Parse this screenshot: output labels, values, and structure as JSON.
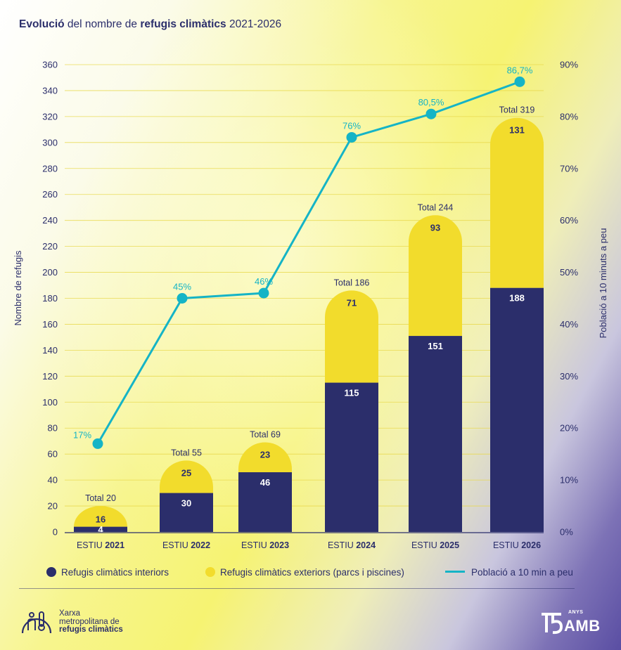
{
  "title": {
    "bold1": "Evolució",
    "mid": " del nombre de ",
    "bold2": "refugis climàtics",
    "end": " 2021-2026"
  },
  "chart_data": {
    "type": "bar",
    "stacked": true,
    "categories": [
      {
        "prefix": "ESTIU ",
        "year": "2021"
      },
      {
        "prefix": "ESTIU ",
        "year": "2022"
      },
      {
        "prefix": "ESTIU ",
        "year": "2023"
      },
      {
        "prefix": "ESTIU ",
        "year": "2024"
      },
      {
        "prefix": "ESTIU ",
        "year": "2025"
      },
      {
        "prefix": "ESTIU ",
        "year": "2026"
      }
    ],
    "series": [
      {
        "name": "Refugis climàtics interiors",
        "values": [
          4,
          30,
          46,
          115,
          151,
          188
        ],
        "color": "#2b2e6b"
      },
      {
        "name": "Refugis climàtics exteriors (parcs i piscines)",
        "values": [
          16,
          25,
          23,
          71,
          93,
          131
        ],
        "color": "#f2dc2c"
      }
    ],
    "totals": [
      20,
      55,
      69,
      186,
      244,
      319
    ],
    "total_labels": [
      "Total 20",
      "Total 55",
      "Total 69",
      "Total 186",
      "Total 244",
      "Total 319"
    ],
    "line_series": {
      "name": "Població a 10 min a peu",
      "values": [
        17,
        45,
        46,
        76,
        80.5,
        86.7
      ],
      "labels": [
        "17%",
        "45%",
        "46%",
        "76%",
        "80,5%",
        "86,7%"
      ],
      "color": "#15b4c6",
      "axis": "right"
    },
    "ylabel": "Nombre de refugis",
    "ylim": [
      0,
      360
    ],
    "yticks": [
      "0",
      "20",
      "40",
      "60",
      "80",
      "100",
      "120",
      "140",
      "160",
      "180",
      "200",
      "220",
      "240",
      "260",
      "280",
      "300",
      "320",
      "340",
      "360"
    ],
    "y2label": "Població a 10 minuts a peu",
    "y2lim": [
      0,
      90
    ],
    "y2ticks": [
      "0%",
      "10%",
      "20%",
      "30%",
      "40%",
      "50%",
      "60%",
      "70%",
      "80%",
      "90%"
    ],
    "grid": true,
    "legend_position": "bottom"
  },
  "brand": {
    "line1": "Xarxa",
    "line2": "metropolitana de",
    "line3": "refugis climàtics"
  },
  "amb_logo": {
    "word": "AMB",
    "anys": "ANYS"
  },
  "colors": {
    "navy": "#2b2e6b",
    "yellow": "#f2dc2c",
    "cyan": "#15b4c6"
  }
}
